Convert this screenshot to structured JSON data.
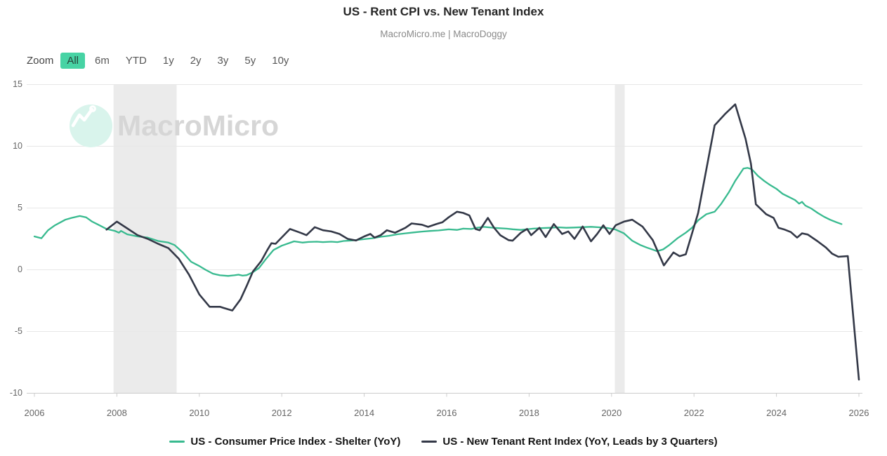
{
  "header": {
    "title": "US - Rent CPI vs. New Tenant Index",
    "subtitle": "MacroMicro.me | MacroDoggy"
  },
  "toolbar": {
    "zoom_label": "Zoom",
    "buttons": [
      {
        "label": "All",
        "active": true
      },
      {
        "label": "6m",
        "active": false
      },
      {
        "label": "YTD",
        "active": false
      },
      {
        "label": "1y",
        "active": false
      },
      {
        "label": "2y",
        "active": false
      },
      {
        "label": "3y",
        "active": false
      },
      {
        "label": "5y",
        "active": false
      },
      {
        "label": "10y",
        "active": false
      }
    ]
  },
  "watermark": {
    "text": "MacroMicro"
  },
  "colors": {
    "accent_green": "#47d3a4",
    "grid": "#e7e7e7",
    "axis": "#cccccc",
    "band": "#ebebeb",
    "tick_text": "#666666"
  },
  "chart_data": {
    "type": "line",
    "title": "US - Rent CPI vs. New Tenant Index",
    "xlabel": "",
    "ylabel": "",
    "xlim": [
      2005.8,
      2026.1
    ],
    "ylim": [
      -10,
      15
    ],
    "grid": "horizontal",
    "legend_position": "bottom",
    "x_ticks": [
      2006,
      2008,
      2010,
      2012,
      2014,
      2016,
      2018,
      2020,
      2022,
      2024,
      2026
    ],
    "y_ticks": [
      15,
      10,
      5,
      0,
      -5,
      -10
    ],
    "bands": [
      {
        "name": "great-recession",
        "x1": 2007.92,
        "x2": 2009.45
      },
      {
        "name": "covid-recession",
        "x1": 2020.08,
        "x2": 2020.32
      }
    ],
    "series": [
      {
        "name": "US - Consumer Price Index - Shelter (YoY)",
        "color": "#38ba8f",
        "width": 2.3,
        "points": [
          [
            2006.0,
            2.7
          ],
          [
            2006.17,
            2.55
          ],
          [
            2006.33,
            3.2
          ],
          [
            2006.5,
            3.6
          ],
          [
            2006.75,
            4.05
          ],
          [
            2006.9,
            4.2
          ],
          [
            2007.1,
            4.35
          ],
          [
            2007.25,
            4.25
          ],
          [
            2007.4,
            3.9
          ],
          [
            2007.55,
            3.65
          ],
          [
            2007.75,
            3.3
          ],
          [
            2007.95,
            3.15
          ],
          [
            2008.05,
            3.0
          ],
          [
            2008.1,
            3.15
          ],
          [
            2008.25,
            2.87
          ],
          [
            2008.5,
            2.7
          ],
          [
            2008.75,
            2.6
          ],
          [
            2009.0,
            2.33
          ],
          [
            2009.25,
            2.2
          ],
          [
            2009.4,
            2.0
          ],
          [
            2009.6,
            1.4
          ],
          [
            2009.8,
            0.65
          ],
          [
            2010.0,
            0.3
          ],
          [
            2010.15,
            0.0
          ],
          [
            2010.33,
            -0.32
          ],
          [
            2010.5,
            -0.45
          ],
          [
            2010.7,
            -0.5
          ],
          [
            2010.85,
            -0.45
          ],
          [
            2010.95,
            -0.4
          ],
          [
            2011.05,
            -0.48
          ],
          [
            2011.15,
            -0.44
          ],
          [
            2011.3,
            -0.2
          ],
          [
            2011.45,
            0.15
          ],
          [
            2011.6,
            0.8
          ],
          [
            2011.8,
            1.6
          ],
          [
            2012.0,
            1.95
          ],
          [
            2012.3,
            2.3
          ],
          [
            2012.5,
            2.2
          ],
          [
            2012.65,
            2.25
          ],
          [
            2012.85,
            2.27
          ],
          [
            2013.0,
            2.24
          ],
          [
            2013.2,
            2.27
          ],
          [
            2013.35,
            2.24
          ],
          [
            2013.5,
            2.33
          ],
          [
            2013.7,
            2.37
          ],
          [
            2013.85,
            2.42
          ],
          [
            2014.0,
            2.48
          ],
          [
            2014.2,
            2.55
          ],
          [
            2014.4,
            2.67
          ],
          [
            2014.6,
            2.75
          ],
          [
            2014.8,
            2.87
          ],
          [
            2015.0,
            2.95
          ],
          [
            2015.2,
            3.02
          ],
          [
            2015.4,
            3.09
          ],
          [
            2015.6,
            3.14
          ],
          [
            2015.8,
            3.18
          ],
          [
            2016.05,
            3.27
          ],
          [
            2016.25,
            3.23
          ],
          [
            2016.4,
            3.33
          ],
          [
            2016.6,
            3.3
          ],
          [
            2016.75,
            3.41
          ],
          [
            2016.9,
            3.47
          ],
          [
            2017.1,
            3.41
          ],
          [
            2017.25,
            3.37
          ],
          [
            2017.45,
            3.33
          ],
          [
            2017.6,
            3.28
          ],
          [
            2017.8,
            3.23
          ],
          [
            2017.95,
            3.28
          ],
          [
            2018.1,
            3.33
          ],
          [
            2018.3,
            3.37
          ],
          [
            2018.5,
            3.4
          ],
          [
            2018.7,
            3.44
          ],
          [
            2018.9,
            3.4
          ],
          [
            2019.1,
            3.42
          ],
          [
            2019.3,
            3.45
          ],
          [
            2019.5,
            3.48
          ],
          [
            2019.7,
            3.44
          ],
          [
            2019.9,
            3.38
          ],
          [
            2020.1,
            3.25
          ],
          [
            2020.3,
            2.95
          ],
          [
            2020.5,
            2.35
          ],
          [
            2020.7,
            2.0
          ],
          [
            2020.85,
            1.8
          ],
          [
            2021.0,
            1.63
          ],
          [
            2021.1,
            1.5
          ],
          [
            2021.25,
            1.65
          ],
          [
            2021.4,
            2.0
          ],
          [
            2021.6,
            2.55
          ],
          [
            2021.8,
            3.0
          ],
          [
            2021.95,
            3.4
          ],
          [
            2022.1,
            4.0
          ],
          [
            2022.3,
            4.5
          ],
          [
            2022.5,
            4.7
          ],
          [
            2022.65,
            5.3
          ],
          [
            2022.85,
            6.3
          ],
          [
            2023.0,
            7.2
          ],
          [
            2023.1,
            7.7
          ],
          [
            2023.2,
            8.2
          ],
          [
            2023.3,
            8.25
          ],
          [
            2023.4,
            8.15
          ],
          [
            2023.55,
            7.6
          ],
          [
            2023.7,
            7.2
          ],
          [
            2023.85,
            6.85
          ],
          [
            2024.0,
            6.55
          ],
          [
            2024.15,
            6.15
          ],
          [
            2024.3,
            5.9
          ],
          [
            2024.45,
            5.65
          ],
          [
            2024.55,
            5.35
          ],
          [
            2024.62,
            5.5
          ],
          [
            2024.7,
            5.2
          ],
          [
            2024.85,
            4.95
          ],
          [
            2025.0,
            4.6
          ],
          [
            2025.15,
            4.3
          ],
          [
            2025.3,
            4.05
          ],
          [
            2025.45,
            3.85
          ],
          [
            2025.58,
            3.7
          ]
        ]
      },
      {
        "name": "US - New Tenant Rent Index (YoY, Leads by 3 Quarters)",
        "color": "#333847",
        "width": 2.6,
        "points": [
          [
            2007.75,
            3.25
          ],
          [
            2008.0,
            3.9
          ],
          [
            2008.25,
            3.35
          ],
          [
            2008.5,
            2.8
          ],
          [
            2008.75,
            2.5
          ],
          [
            2009.0,
            2.1
          ],
          [
            2009.25,
            1.75
          ],
          [
            2009.5,
            0.9
          ],
          [
            2009.75,
            -0.4
          ],
          [
            2010.0,
            -2.0
          ],
          [
            2010.25,
            -3.0
          ],
          [
            2010.5,
            -3.0
          ],
          [
            2010.6,
            -3.1
          ],
          [
            2010.8,
            -3.3
          ],
          [
            2011.0,
            -2.4
          ],
          [
            2011.15,
            -1.3
          ],
          [
            2011.3,
            -0.15
          ],
          [
            2011.5,
            0.7
          ],
          [
            2011.65,
            1.6
          ],
          [
            2011.75,
            2.15
          ],
          [
            2011.85,
            2.1
          ],
          [
            2012.2,
            3.3
          ],
          [
            2012.45,
            3.0
          ],
          [
            2012.6,
            2.8
          ],
          [
            2012.8,
            3.45
          ],
          [
            2013.0,
            3.2
          ],
          [
            2013.2,
            3.1
          ],
          [
            2013.4,
            2.9
          ],
          [
            2013.6,
            2.5
          ],
          [
            2013.8,
            2.37
          ],
          [
            2014.0,
            2.7
          ],
          [
            2014.15,
            2.9
          ],
          [
            2014.25,
            2.6
          ],
          [
            2014.4,
            2.8
          ],
          [
            2014.55,
            3.2
          ],
          [
            2014.75,
            3.0
          ],
          [
            2015.0,
            3.4
          ],
          [
            2015.15,
            3.75
          ],
          [
            2015.4,
            3.65
          ],
          [
            2015.55,
            3.47
          ],
          [
            2015.75,
            3.7
          ],
          [
            2015.9,
            3.85
          ],
          [
            2016.05,
            4.25
          ],
          [
            2016.25,
            4.7
          ],
          [
            2016.4,
            4.6
          ],
          [
            2016.55,
            4.4
          ],
          [
            2016.7,
            3.3
          ],
          [
            2016.8,
            3.2
          ],
          [
            2017.0,
            4.2
          ],
          [
            2017.15,
            3.4
          ],
          [
            2017.3,
            2.8
          ],
          [
            2017.5,
            2.4
          ],
          [
            2017.6,
            2.35
          ],
          [
            2017.8,
            3.0
          ],
          [
            2017.95,
            3.3
          ],
          [
            2018.05,
            2.8
          ],
          [
            2018.25,
            3.4
          ],
          [
            2018.4,
            2.65
          ],
          [
            2018.6,
            3.7
          ],
          [
            2018.8,
            2.9
          ],
          [
            2018.95,
            3.1
          ],
          [
            2019.1,
            2.5
          ],
          [
            2019.3,
            3.5
          ],
          [
            2019.5,
            2.3
          ],
          [
            2019.65,
            2.9
          ],
          [
            2019.8,
            3.6
          ],
          [
            2019.95,
            2.9
          ],
          [
            2020.1,
            3.6
          ],
          [
            2020.3,
            3.9
          ],
          [
            2020.5,
            4.05
          ],
          [
            2020.75,
            3.5
          ],
          [
            2021.0,
            2.4
          ],
          [
            2021.27,
            0.35
          ],
          [
            2021.5,
            1.4
          ],
          [
            2021.65,
            1.1
          ],
          [
            2021.8,
            1.25
          ],
          [
            2022.1,
            4.6
          ],
          [
            2022.5,
            11.7
          ],
          [
            2022.75,
            12.6
          ],
          [
            2023.0,
            13.4
          ],
          [
            2023.25,
            10.6
          ],
          [
            2023.38,
            8.6
          ],
          [
            2023.5,
            5.3
          ],
          [
            2023.75,
            4.5
          ],
          [
            2023.93,
            4.2
          ],
          [
            2024.05,
            3.4
          ],
          [
            2024.2,
            3.25
          ],
          [
            2024.35,
            3.05
          ],
          [
            2024.5,
            2.6
          ],
          [
            2024.62,
            2.95
          ],
          [
            2024.76,
            2.85
          ],
          [
            2025.0,
            2.3
          ],
          [
            2025.2,
            1.8
          ],
          [
            2025.35,
            1.3
          ],
          [
            2025.5,
            1.05
          ],
          [
            2025.73,
            1.1
          ],
          [
            2026.0,
            -8.9
          ]
        ]
      }
    ]
  }
}
